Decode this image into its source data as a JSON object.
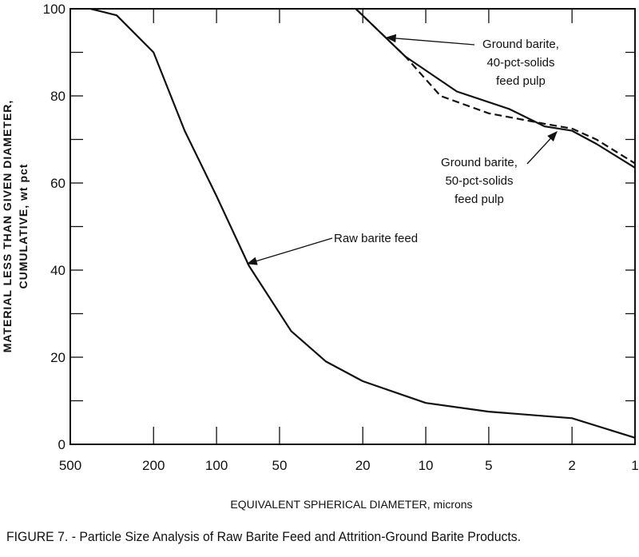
{
  "chart_data": {
    "type": "line",
    "title": "",
    "caption": "FIGURE 7. - Particle Size Analysis of Raw Barite Feed and Attrition-Ground Barite Products.",
    "xlabel": "EQUIVALENT SPHERICAL DIAMETER, microns",
    "ylabel_line1": "MATERIAL LESS THAN GIVEN DIAMETER,",
    "ylabel_line2": "CUMULATIVE, wt pct",
    "x_scale": "log",
    "x_reversed": true,
    "xlim": [
      500,
      1
    ],
    "ylim": [
      0,
      100
    ],
    "x_ticks": [
      500,
      200,
      100,
      50,
      20,
      10,
      5,
      2,
      1
    ],
    "x_tick_labels": [
      "500",
      "200",
      "100",
      "50",
      "20",
      "10",
      "5",
      "2",
      "1"
    ],
    "y_ticks": [
      0,
      10,
      20,
      30,
      40,
      50,
      60,
      70,
      80,
      90,
      100
    ],
    "y_tick_labels": [
      "0",
      "20",
      "40",
      "60",
      "80",
      "100"
    ],
    "grid": false,
    "series": [
      {
        "name": "Raw barite feed",
        "style": "solid",
        "x": [
          400,
          300,
          200,
          142,
          100,
          70,
          44,
          30,
          20,
          10,
          5,
          2,
          1
        ],
        "y": [
          100,
          98.5,
          90,
          72,
          57,
          41,
          26,
          19,
          14.5,
          9.5,
          7.5,
          6,
          1.5
        ]
      },
      {
        "name": "Ground barite, 50-pct-solids feed pulp",
        "style": "solid",
        "x": [
          21.6,
          12.5,
          7.1,
          4,
          2.7,
          2,
          1.53,
          1
        ],
        "y": [
          100,
          89,
          81,
          77,
          73,
          72,
          69,
          63.5
        ]
      },
      {
        "name": "Ground barite, 40-pct-solids feed pulp",
        "style": "dashed",
        "x": [
          21.6,
          12.5,
          8.5,
          5,
          2.7,
          2,
          1.53,
          1
        ],
        "y": [
          100,
          89,
          80,
          76,
          73.6,
          72.5,
          70,
          64.5
        ]
      }
    ],
    "annotations": [
      {
        "lines": [
          "Ground barite,",
          "40-pct-solids",
          "feed pulp"
        ]
      },
      {
        "lines": [
          "Ground barite,",
          "50-pct-solids",
          "feed pulp"
        ]
      },
      {
        "lines": [
          "Raw barite feed"
        ]
      }
    ]
  }
}
